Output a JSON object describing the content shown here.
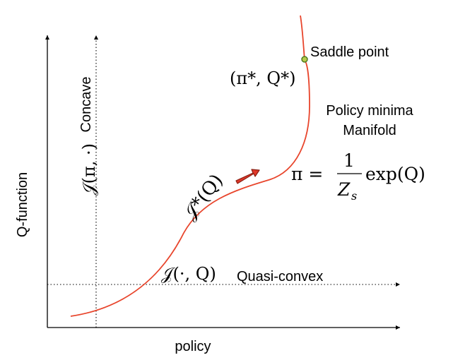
{
  "axes": {
    "x_label": "policy",
    "y_label": "Q-function"
  },
  "labels": {
    "saddle_point": "Saddle point",
    "saddle_coords": "(π*, Q*)",
    "manifold_line1": "Policy minima",
    "manifold_line2": "Manifold",
    "concave": "Concave",
    "quasi_convex": "Quasi-convex",
    "j_pi_dot": "𝒥(π, ·)",
    "j_dot_q": "𝒥(·, Q)",
    "j_star_q": "𝒥*(Q)"
  },
  "formula": {
    "lhs": "π =",
    "numerator": "1",
    "denominator": "Z",
    "denominator_sub": "s",
    "rhs": "exp(Q)"
  },
  "colors": {
    "curve": "#e8452c",
    "arrow_fill": "#e0382a",
    "arrow_stroke": "#8a1f12",
    "saddle_fill": "#b5c94a",
    "saddle_stroke": "#3d6b12",
    "axis": "#000000"
  }
}
